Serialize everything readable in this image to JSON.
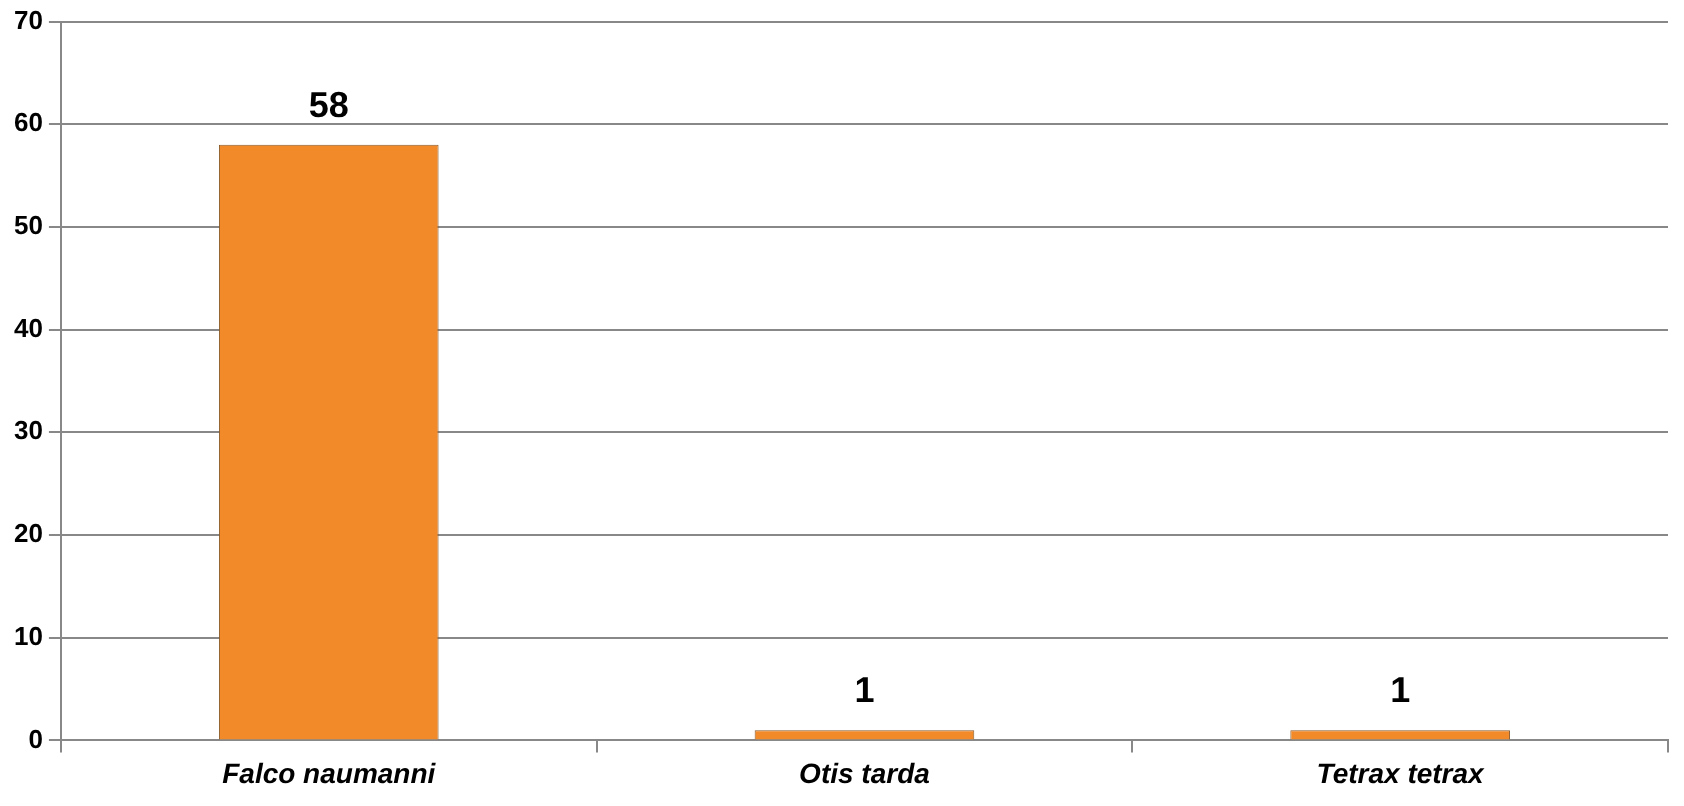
{
  "chart_data": {
    "type": "bar",
    "categories": [
      "Falco naumanni",
      "Otis tarda",
      "Tetrax tetrax"
    ],
    "values": [
      58,
      1,
      1
    ],
    "color": "#f28a2a",
    "ylim": [
      0,
      70
    ],
    "yticks": [
      0,
      10,
      20,
      30,
      40,
      50,
      60,
      70
    ],
    "grid": "y",
    "data_labels": true
  }
}
